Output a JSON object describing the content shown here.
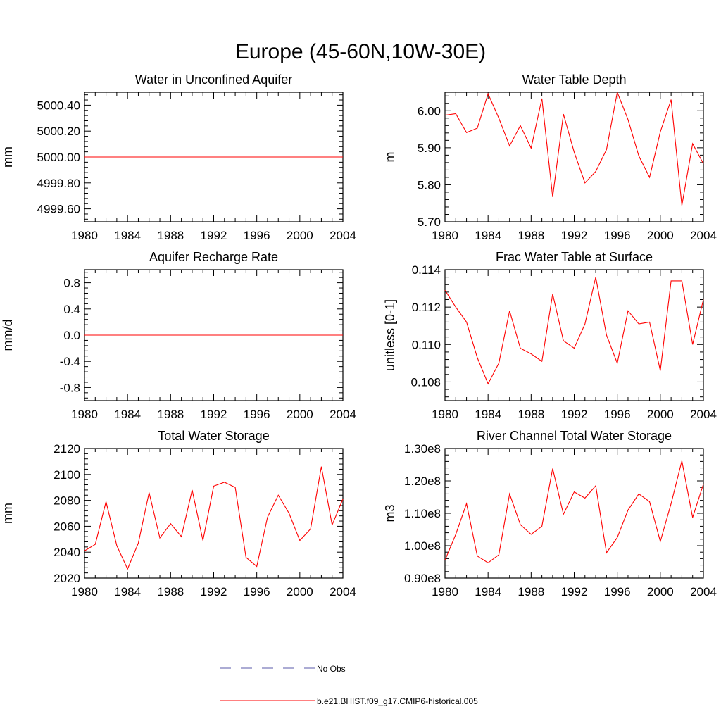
{
  "page_title": "Europe (45-60N,10W-30E)",
  "legend": {
    "items": [
      {
        "label": "No Obs",
        "color": "#5a5aa8",
        "style": "dashed"
      },
      {
        "label": "b.e21.BHIST.f09_g17.CMIP6-historical.005",
        "color": "#ff0000",
        "style": "solid"
      }
    ]
  },
  "line_color": "#ff0000",
  "chart_data": [
    {
      "type": "line",
      "title": "Water in Unconfined Aquifer",
      "xlabel": "",
      "ylabel": "mm",
      "xlim": [
        1980,
        2004
      ],
      "ylim": [
        4999.5,
        5000.5
      ],
      "xticks": [
        1980,
        1984,
        1988,
        1992,
        1996,
        2000,
        2004
      ],
      "xtick_labels": [
        "1980",
        "1984",
        "1988",
        "1992",
        "1996",
        "2000",
        "2004"
      ],
      "yticks": [
        4999.6,
        4999.8,
        5000.0,
        5000.2,
        5000.4
      ],
      "ytick_labels": [
        "4999.60",
        "4999.80",
        "5000.00",
        "5000.20",
        "5000.40"
      ],
      "series": [
        {
          "x": [
            1980,
            1981,
            1982,
            1983,
            1984,
            1985,
            1986,
            1987,
            1988,
            1989,
            1990,
            1991,
            1992,
            1993,
            1994,
            1995,
            1996,
            1997,
            1998,
            1999,
            2000,
            2001,
            2002,
            2003,
            2004
          ],
          "values": [
            5000,
            5000,
            5000,
            5000,
            5000,
            5000,
            5000,
            5000,
            5000,
            5000,
            5000,
            5000,
            5000,
            5000,
            5000,
            5000,
            5000,
            5000,
            5000,
            5000,
            5000,
            5000,
            5000,
            5000,
            5000
          ]
        }
      ]
    },
    {
      "type": "line",
      "title": "Water Table Depth",
      "xlabel": "",
      "ylabel": "m",
      "xlim": [
        1980,
        2004
      ],
      "ylim": [
        5.7,
        6.05
      ],
      "xticks": [
        1980,
        1984,
        1988,
        1992,
        1996,
        2000,
        2004
      ],
      "xtick_labels": [
        "1980",
        "1984",
        "1988",
        "1992",
        "1996",
        "2000",
        "2004"
      ],
      "yticks": [
        5.7,
        5.8,
        5.9,
        6.0
      ],
      "ytick_labels": [
        "5.70",
        "5.80",
        "5.90",
        "6.00"
      ],
      "series": [
        {
          "x": [
            1980,
            1981,
            1982,
            1983,
            1984,
            1985,
            1986,
            1987,
            1988,
            1989,
            1990,
            1991,
            1992,
            1993,
            1994,
            1995,
            1996,
            1997,
            1998,
            1999,
            2000,
            2001,
            2002,
            2003,
            2004
          ],
          "values": [
            5.988,
            5.992,
            5.941,
            5.953,
            6.046,
            5.98,
            5.905,
            5.96,
            5.899,
            6.033,
            5.767,
            5.991,
            5.888,
            5.805,
            5.836,
            5.895,
            6.05,
            5.976,
            5.878,
            5.82,
            5.943,
            6.03,
            5.744,
            5.911,
            5.857
          ]
        }
      ]
    },
    {
      "type": "line",
      "title": "Aquifer Recharge Rate",
      "xlabel": "",
      "ylabel": "mm/d",
      "xlim": [
        1980,
        2004
      ],
      "ylim": [
        -1.0,
        1.0
      ],
      "xticks": [
        1980,
        1984,
        1988,
        1992,
        1996,
        2000,
        2004
      ],
      "xtick_labels": [
        "1980",
        "1984",
        "1988",
        "1992",
        "1996",
        "2000",
        "2004"
      ],
      "yticks": [
        -0.8,
        -0.4,
        0.0,
        0.4,
        0.8
      ],
      "ytick_labels": [
        "-0.8",
        "-0.4",
        "0.0",
        "0.4",
        "0.8"
      ],
      "series": [
        {
          "x": [
            1980,
            1981,
            1982,
            1983,
            1984,
            1985,
            1986,
            1987,
            1988,
            1989,
            1990,
            1991,
            1992,
            1993,
            1994,
            1995,
            1996,
            1997,
            1998,
            1999,
            2000,
            2001,
            2002,
            2003,
            2004
          ],
          "values": [
            0,
            0,
            0,
            0,
            0,
            0,
            0,
            0,
            0,
            0,
            0,
            0,
            0,
            0,
            0,
            0,
            0,
            0,
            0,
            0,
            0,
            0,
            0,
            0,
            0
          ]
        }
      ]
    },
    {
      "type": "line",
      "title": "Frac Water Table at Surface",
      "xlabel": "",
      "ylabel": "unitless [0-1]",
      "xlim": [
        1980,
        2004
      ],
      "ylim": [
        0.107,
        0.114
      ],
      "xticks": [
        1980,
        1984,
        1988,
        1992,
        1996,
        2000,
        2004
      ],
      "xtick_labels": [
        "1980",
        "1984",
        "1988",
        "1992",
        "1996",
        "2000",
        "2004"
      ],
      "yticks": [
        0.108,
        0.11,
        0.112,
        0.114
      ],
      "ytick_labels": [
        "0.108",
        "0.110",
        "0.112",
        "0.114"
      ],
      "series": [
        {
          "x": [
            1980,
            1981,
            1982,
            1983,
            1984,
            1985,
            1986,
            1987,
            1988,
            1989,
            1990,
            1991,
            1992,
            1993,
            1994,
            1995,
            1996,
            1997,
            1998,
            1999,
            2000,
            2001,
            2002,
            2003,
            2004
          ],
          "values": [
            0.1129,
            0.112,
            0.1112,
            0.1093,
            0.1079,
            0.109,
            0.1118,
            0.1098,
            0.1095,
            0.1091,
            0.1127,
            0.1102,
            0.1098,
            0.1111,
            0.1136,
            0.1105,
            0.109,
            0.1118,
            0.1111,
            0.1112,
            0.1086,
            0.1134,
            0.1134,
            0.11,
            0.1124
          ]
        }
      ]
    },
    {
      "type": "line",
      "title": "Total Water Storage",
      "xlabel": "",
      "ylabel": "mm",
      "xlim": [
        1980,
        2004
      ],
      "ylim": [
        2020,
        2120
      ],
      "xticks": [
        1980,
        1984,
        1988,
        1992,
        1996,
        2000,
        2004
      ],
      "xtick_labels": [
        "1980",
        "1984",
        "1988",
        "1992",
        "1996",
        "2000",
        "2004"
      ],
      "yticks": [
        2020,
        2040,
        2060,
        2080,
        2100,
        2120
      ],
      "ytick_labels": [
        "2020",
        "2040",
        "2060",
        "2080",
        "2100",
        "2120"
      ],
      "series": [
        {
          "x": [
            1980,
            1981,
            1982,
            1983,
            1984,
            1985,
            1986,
            1987,
            1988,
            1989,
            1990,
            1991,
            1992,
            1993,
            1994,
            1995,
            1996,
            1997,
            1998,
            1999,
            2000,
            2001,
            2002,
            2003,
            2004
          ],
          "values": [
            2041,
            2046,
            2079,
            2045,
            2027,
            2047,
            2086,
            2051,
            2062,
            2052,
            2088,
            2049,
            2091,
            2094,
            2090,
            2036,
            2029,
            2067,
            2084,
            2070,
            2049,
            2058,
            2106,
            2061,
            2081
          ]
        }
      ]
    },
    {
      "type": "line",
      "title": "River Channel Total Water Storage",
      "xlabel": "",
      "ylabel": "m3",
      "xlim": [
        1980,
        2004
      ],
      "ylim": [
        90000000.0,
        130000000.0
      ],
      "xticks": [
        1980,
        1984,
        1988,
        1992,
        1996,
        2000,
        2004
      ],
      "xtick_labels": [
        "1980",
        "1984",
        "1988",
        "1992",
        "1996",
        "2000",
        "2004"
      ],
      "yticks": [
        90000000.0,
        100000000.0,
        110000000.0,
        120000000.0,
        130000000.0
      ],
      "ytick_labels": [
        "0.90e8",
        "1.00e8",
        "1.10e8",
        "1.20e8",
        "1.30e8"
      ],
      "series": [
        {
          "x": [
            1980,
            1981,
            1982,
            1983,
            1984,
            1985,
            1986,
            1987,
            1988,
            1989,
            1990,
            1991,
            1992,
            1993,
            1994,
            1995,
            1996,
            1997,
            1998,
            1999,
            2000,
            2001,
            2002,
            2003,
            2004
          ],
          "values": [
            95500000.0,
            103500000.0,
            113000000.0,
            96800000.0,
            94700000.0,
            97200000.0,
            116000000.0,
            106500000.0,
            103500000.0,
            106000000.0,
            123800000.0,
            109700000.0,
            116600000.0,
            114700000.0,
            118500000.0,
            97800000.0,
            102500000.0,
            111000000.0,
            116000000.0,
            113600000.0,
            101300000.0,
            113000000.0,
            126200000.0,
            108700000.0,
            119000000.0
          ]
        }
      ]
    }
  ]
}
